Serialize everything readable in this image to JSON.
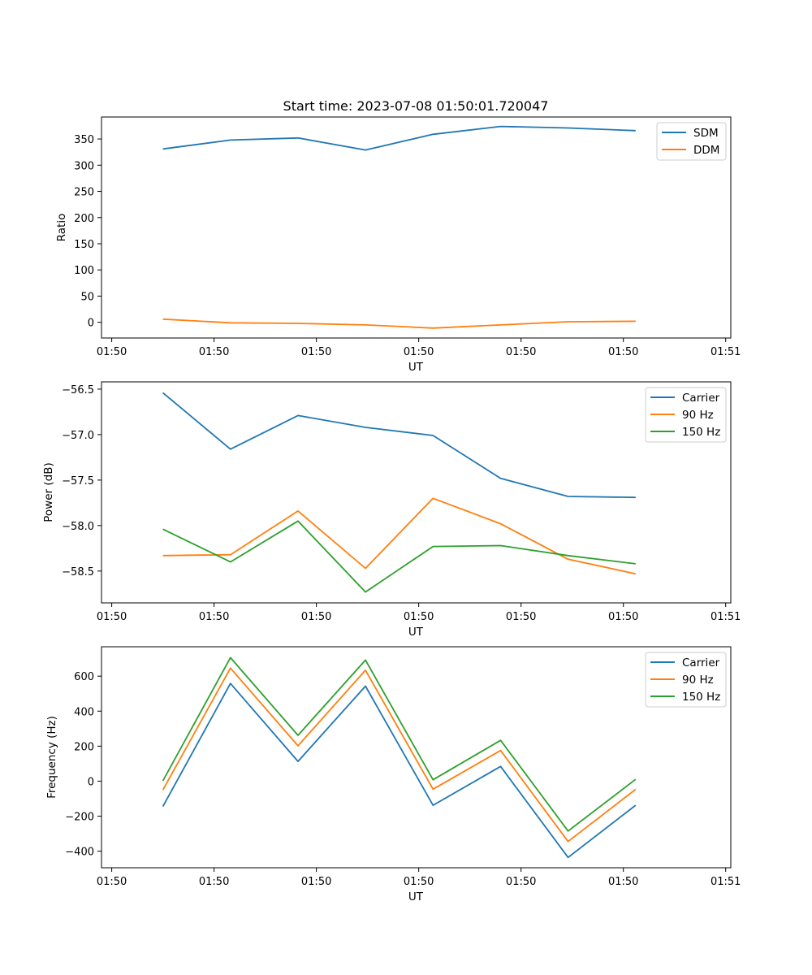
{
  "chart_data": [
    {
      "type": "line",
      "title": "Start time: 2023-07-08 01:50:01.720047",
      "xlabel": "UT",
      "ylabel": "Ratio",
      "x_tick_labels": [
        "01:50",
        "01:50",
        "01:50",
        "01:50",
        "01:50",
        "01:50",
        "01:51"
      ],
      "x": [
        0.5,
        1.16,
        1.82,
        2.48,
        3.14,
        3.8,
        4.46,
        5.12
      ],
      "xlim": [
        -0.1,
        6.05
      ],
      "xticks": [
        0,
        1,
        2,
        3,
        4,
        5,
        6
      ],
      "ylim": [
        -30,
        392
      ],
      "yticks": [
        0,
        50,
        100,
        150,
        200,
        250,
        300,
        350
      ],
      "legend_position": "top-right",
      "series": [
        {
          "name": "SDM",
          "color": "#1f77b4",
          "values": [
            331,
            348,
            352,
            329,
            359,
            374,
            371,
            366
          ]
        },
        {
          "name": "DDM",
          "color": "#ff7f0e",
          "values": [
            6,
            -1,
            -2,
            -5,
            -11,
            -5,
            1,
            2
          ]
        }
      ]
    },
    {
      "type": "line",
      "xlabel": "UT",
      "ylabel": "Power (dB)",
      "x_tick_labels": [
        "01:50",
        "01:50",
        "01:50",
        "01:50",
        "01:50",
        "01:50",
        "01:51"
      ],
      "x": [
        0.5,
        1.16,
        1.82,
        2.48,
        3.14,
        3.8,
        4.46,
        5.12
      ],
      "xlim": [
        -0.1,
        6.05
      ],
      "xticks": [
        0,
        1,
        2,
        3,
        4,
        5,
        6
      ],
      "ylim": [
        -58.85,
        -56.42
      ],
      "yticks": [
        -58.5,
        -58.0,
        -57.5,
        -57.0,
        -56.5
      ],
      "ytick_labels": [
        "−58.5",
        "−58.0",
        "−57.5",
        "−57.0",
        "−56.5"
      ],
      "legend_position": "top-right",
      "series": [
        {
          "name": "Carrier",
          "color": "#1f77b4",
          "values": [
            -56.54,
            -57.16,
            -56.79,
            -56.92,
            -57.01,
            -57.48,
            -57.68,
            -57.69
          ]
        },
        {
          "name": "90 Hz",
          "color": "#ff7f0e",
          "values": [
            -58.33,
            -58.32,
            -57.84,
            -58.47,
            -57.7,
            -57.98,
            -58.37,
            -58.53
          ]
        },
        {
          "name": "150 Hz",
          "color": "#2ca02c",
          "values": [
            -58.04,
            -58.4,
            -57.95,
            -58.73,
            -58.23,
            -58.22,
            -58.33,
            -58.42
          ]
        }
      ]
    },
    {
      "type": "line",
      "xlabel": "UT",
      "ylabel": "Frequency (Hz)",
      "x_tick_labels": [
        "01:50",
        "01:50",
        "01:50",
        "01:50",
        "01:50",
        "01:50",
        "01:51"
      ],
      "x": [
        0.5,
        1.16,
        1.82,
        2.48,
        3.14,
        3.8,
        4.46,
        5.12
      ],
      "xlim": [
        -0.1,
        6.05
      ],
      "xticks": [
        0,
        1,
        2,
        3,
        4,
        5,
        6
      ],
      "ylim": [
        -495,
        768
      ],
      "yticks": [
        -400,
        -200,
        0,
        200,
        400,
        600
      ],
      "ytick_labels": [
        "−400",
        "−200",
        "0",
        "200",
        "400",
        "600"
      ],
      "legend_position": "top-right",
      "series": [
        {
          "name": "Carrier",
          "color": "#1f77b4",
          "values": [
            -145,
            558,
            113,
            543,
            -138,
            84,
            -436,
            -138
          ]
        },
        {
          "name": "90 Hz",
          "color": "#ff7f0e",
          "values": [
            -50,
            646,
            202,
            634,
            -46,
            175,
            -345,
            -47
          ]
        },
        {
          "name": "150 Hz",
          "color": "#2ca02c",
          "values": [
            2,
            706,
            262,
            692,
            8,
            233,
            -285,
            10
          ]
        }
      ]
    }
  ]
}
